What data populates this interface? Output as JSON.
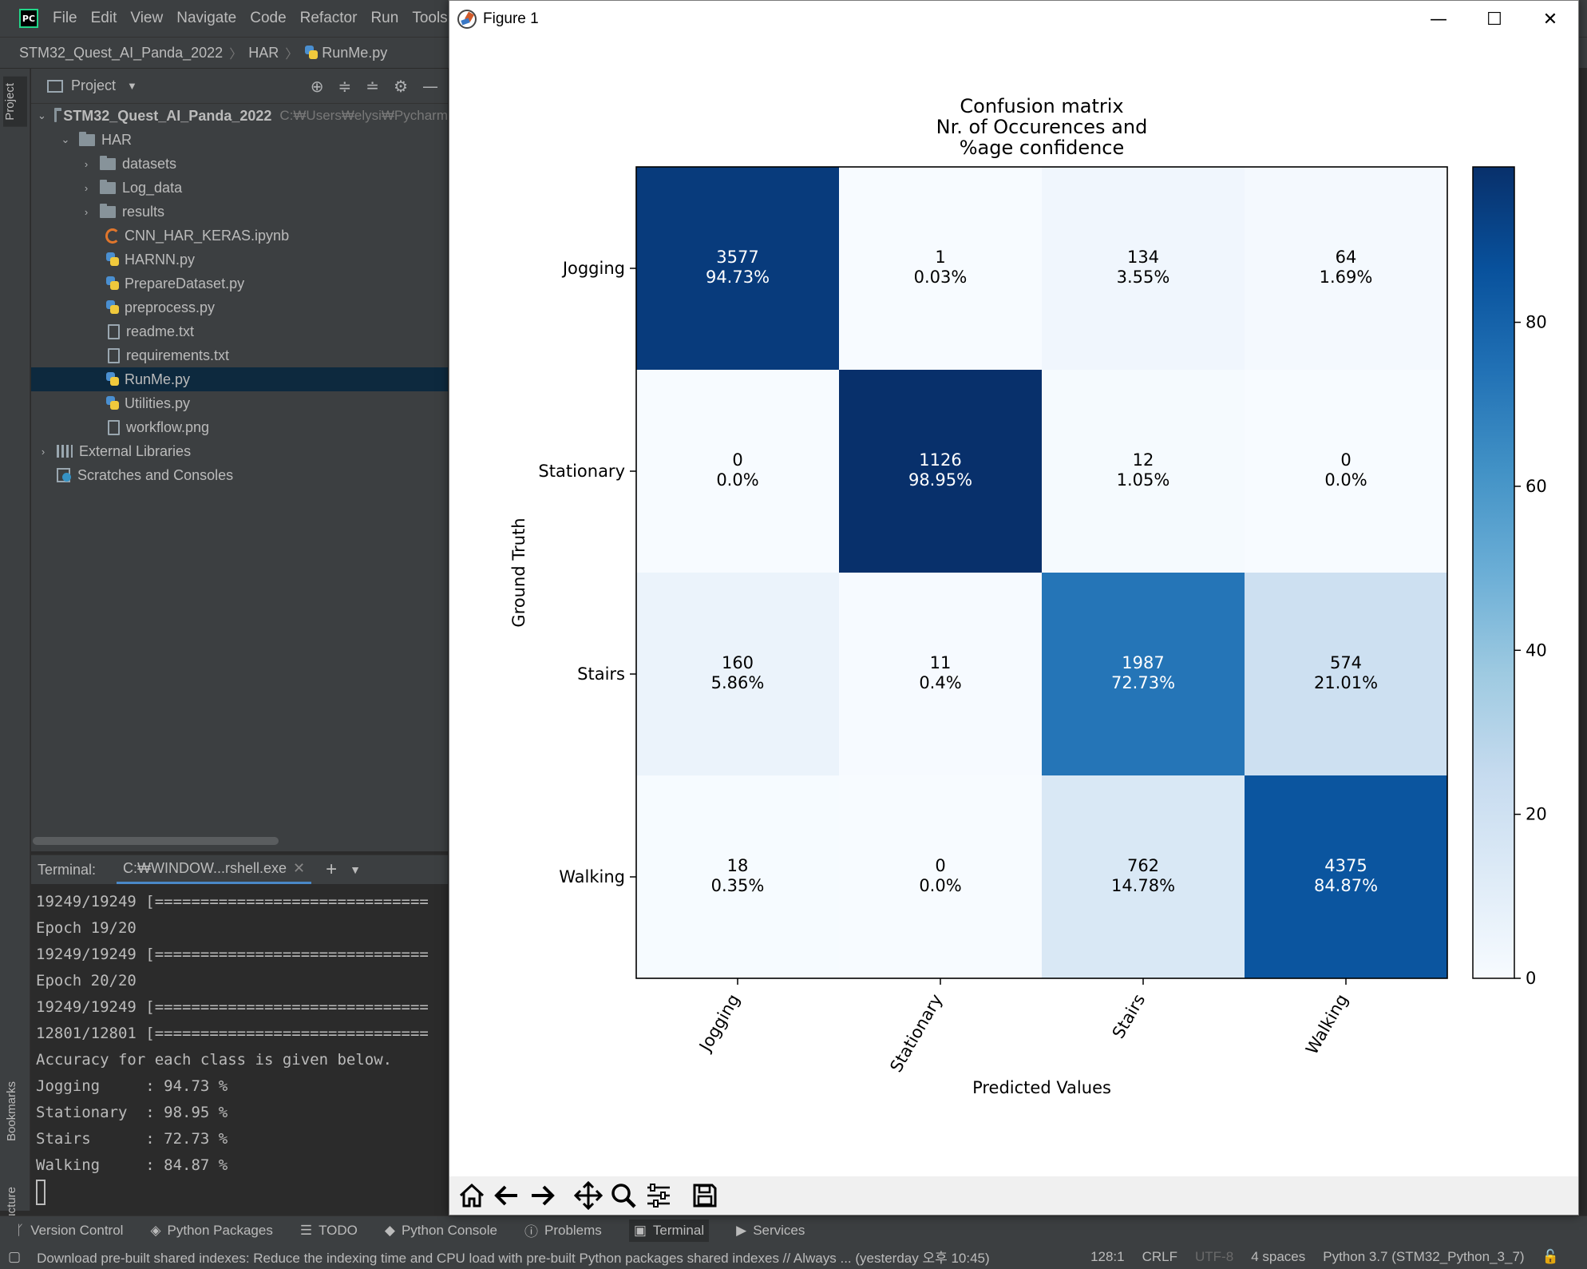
{
  "ide": {
    "app_icon": "pycharm-logo",
    "menu": [
      {
        "label": "File"
      },
      {
        "label": "Edit"
      },
      {
        "label": "View"
      },
      {
        "label": "Navigate"
      },
      {
        "label": "Code"
      },
      {
        "label": "Refactor"
      },
      {
        "label": "Run"
      },
      {
        "label": "Tools"
      }
    ],
    "breadcrumb": {
      "project": "STM32_Quest_AI_Panda_2022",
      "folder": "HAR",
      "file": "RunMe.py"
    },
    "left_strip": {
      "project_tab": "Project",
      "bookmarks_tab": "Bookmarks",
      "structure_tab": "Structure"
    },
    "project_panel": {
      "title": "Project",
      "root": {
        "name": "STM32_Quest_AI_Panda_2022",
        "path": "C:₩Users₩elysi₩Pycharm"
      },
      "har": "HAR",
      "folders": [
        "datasets",
        "Log_data",
        "results"
      ],
      "files": [
        "CNN_HAR_KERAS.ipynb",
        "HARNN.py",
        "PrepareDataset.py",
        "preprocess.py",
        "readme.txt",
        "requirements.txt",
        "RunMe.py",
        "Utilities.py",
        "workflow.png"
      ],
      "external_libraries": "External Libraries",
      "scratches": "Scratches and Consoles"
    },
    "terminal": {
      "label": "Terminal:",
      "tab": "C:₩WINDOW...rshell.exe",
      "lines": [
        "19249/19249 [==============================",
        "Epoch 19/20",
        "19249/19249 [==============================",
        "Epoch 20/20",
        "19249/19249 [==============================",
        "12801/12801 [==============================",
        "Accuracy for each class is given below.",
        "Jogging     : 94.73 %",
        "Stationary  : 98.95 %",
        "Stairs      : 72.73 %",
        "Walking     : 84.87 %"
      ]
    },
    "toolstrip": [
      {
        "label": "Version Control",
        "icon": "branch-icon"
      },
      {
        "label": "Python Packages",
        "icon": "layers-icon"
      },
      {
        "label": "TODO",
        "icon": "list-icon"
      },
      {
        "label": "Python Console",
        "icon": "python-icon"
      },
      {
        "label": "Problems",
        "icon": "info-icon"
      },
      {
        "label": "Terminal",
        "icon": "terminal-icon"
      },
      {
        "label": "Services",
        "icon": "play-icon"
      }
    ],
    "status": {
      "message": "Download pre-built shared indexes: Reduce the indexing time and CPU load with pre-built Python packages shared indexes // Always ... (yesterday 오후 10:45)",
      "position": "128:1",
      "line_sep": "CRLF",
      "encoding": "UTF-8",
      "indent": "4 spaces",
      "interpreter": "Python 3.7 (STM32_Python_3_7)"
    }
  },
  "figure_window": {
    "title": "Figure 1",
    "controls": {
      "minimize": "—",
      "maximize": "☐",
      "close": "✕"
    },
    "toolbar_icons": [
      "home-icon",
      "back-icon",
      "forward-icon",
      "pan-icon",
      "zoom-icon",
      "configure-icon",
      "save-icon"
    ]
  },
  "chart_data": {
    "type": "heatmap",
    "title": [
      "Confusion matrix",
      "Nr. of Occurences and",
      "%age confidence"
    ],
    "xlabel": "Predicted Values",
    "ylabel": "Ground Truth",
    "x_categories": [
      "Jogging",
      "Stationary",
      "Stairs",
      "Walking"
    ],
    "y_categories": [
      "Jogging",
      "Stationary",
      "Stairs",
      "Walking"
    ],
    "counts": [
      [
        3577,
        1,
        134,
        64
      ],
      [
        0,
        1126,
        12,
        0
      ],
      [
        160,
        11,
        1987,
        574
      ],
      [
        18,
        0,
        762,
        4375
      ]
    ],
    "percent_labels": [
      [
        "94.73%",
        "0.03%",
        "3.55%",
        "1.69%"
      ],
      [
        "0.0%",
        "98.95%",
        "1.05%",
        "0.0%"
      ],
      [
        "5.86%",
        "0.4%",
        "72.73%",
        "21.01%"
      ],
      [
        "0.35%",
        "0.0%",
        "14.78%",
        "84.87%"
      ]
    ],
    "percent_values": [
      [
        94.73,
        0.03,
        3.55,
        1.69
      ],
      [
        0.0,
        98.95,
        1.05,
        0.0
      ],
      [
        5.86,
        0.4,
        72.73,
        21.01
      ],
      [
        0.35,
        0.0,
        14.78,
        84.87
      ]
    ],
    "colormap": "Blues",
    "colorbar": {
      "range": [
        0,
        98.95
      ],
      "ticks": [
        0,
        20,
        40,
        60,
        80
      ]
    }
  }
}
